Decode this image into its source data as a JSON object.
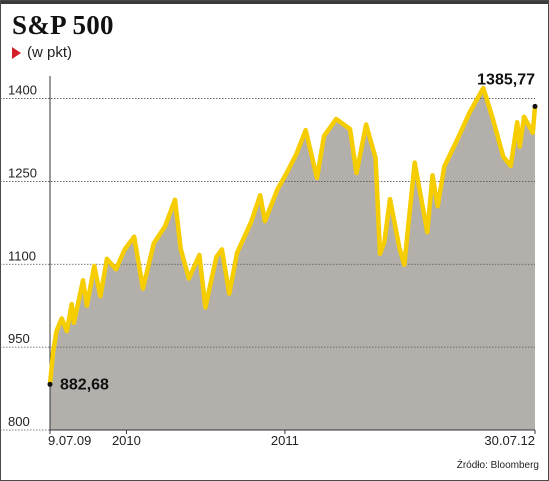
{
  "title": "S&P 500",
  "subtitle": "(w pkt)",
  "source": "Źródło: Bloomberg",
  "colors": {
    "line": "#f5cd00",
    "area": "#b3b0ac",
    "grid": "#555555",
    "subtitle_marker": "#d4202a"
  },
  "chart_data": {
    "type": "area",
    "title": "S&P 500",
    "subtitle": "(w pkt)",
    "xlabel": "",
    "ylabel": "",
    "ylim": [
      800,
      1430
    ],
    "yticks": [
      800,
      950,
      1100,
      1250,
      1400
    ],
    "xtick_labels": [
      {
        "label": "9.07.09",
        "date": "2009-07-09"
      },
      {
        "label": "2010",
        "date": "2010-01-01"
      },
      {
        "label": "2011",
        "date": "2011-01-01"
      },
      {
        "label": "30.07.12",
        "date": "2012-07-30"
      }
    ],
    "grid": true,
    "annotations": [
      {
        "text": "882,68",
        "date": "2009-07-09",
        "value": 882.68
      },
      {
        "text": "1385,77",
        "date": "2012-07-30",
        "value": 1385.77
      }
    ],
    "series": [
      {
        "values": [
          [
            "2009-07-09",
            882.68
          ],
          [
            "2009-07-16",
            940
          ],
          [
            "2009-07-24",
            979
          ],
          [
            "2009-08-05",
            1002
          ],
          [
            "2009-08-17",
            979
          ],
          [
            "2009-08-28",
            1028
          ],
          [
            "2009-09-02",
            994
          ],
          [
            "2009-09-23",
            1071
          ],
          [
            "2009-10-02",
            1025
          ],
          [
            "2009-10-19",
            1097
          ],
          [
            "2009-11-02",
            1042
          ],
          [
            "2009-11-17",
            1110
          ],
          [
            "2009-12-08",
            1091
          ],
          [
            "2009-12-28",
            1127
          ],
          [
            "2010-01-19",
            1150
          ],
          [
            "2010-02-08",
            1056
          ],
          [
            "2010-03-05",
            1138
          ],
          [
            "2010-03-31",
            1169
          ],
          [
            "2010-04-23",
            1217
          ],
          [
            "2010-05-06",
            1128
          ],
          [
            "2010-05-25",
            1074
          ],
          [
            "2010-06-18",
            1117
          ],
          [
            "2010-07-02",
            1022
          ],
          [
            "2010-07-27",
            1113
          ],
          [
            "2010-08-09",
            1127
          ],
          [
            "2010-08-26",
            1047
          ],
          [
            "2010-09-13",
            1121
          ],
          [
            "2010-10-15",
            1176
          ],
          [
            "2010-11-05",
            1225
          ],
          [
            "2010-11-16",
            1178
          ],
          [
            "2010-12-15",
            1236
          ],
          [
            "2010-12-31",
            1258
          ],
          [
            "2011-01-27",
            1299
          ],
          [
            "2011-02-18",
            1343
          ],
          [
            "2011-03-16",
            1256
          ],
          [
            "2011-04-01",
            1332
          ],
          [
            "2011-04-29",
            1363
          ],
          [
            "2011-05-31",
            1345
          ],
          [
            "2011-06-15",
            1265
          ],
          [
            "2011-07-07",
            1353
          ],
          [
            "2011-07-29",
            1292
          ],
          [
            "2011-08-08",
            1119
          ],
          [
            "2011-08-18",
            1140
          ],
          [
            "2011-08-31",
            1218
          ],
          [
            "2011-09-22",
            1129
          ],
          [
            "2011-10-03",
            1099
          ],
          [
            "2011-10-27",
            1284
          ],
          [
            "2011-11-25",
            1158
          ],
          [
            "2011-12-07",
            1261
          ],
          [
            "2011-12-19",
            1205
          ],
          [
            "2012-01-03",
            1277
          ],
          [
            "2012-02-01",
            1324
          ],
          [
            "2012-03-01",
            1374
          ],
          [
            "2012-04-02",
            1419
          ],
          [
            "2012-04-23",
            1366
          ],
          [
            "2012-05-18",
            1295
          ],
          [
            "2012-06-04",
            1278
          ],
          [
            "2012-06-19",
            1357
          ],
          [
            "2012-06-25",
            1313
          ],
          [
            "2012-07-05",
            1367
          ],
          [
            "2012-07-25",
            1338
          ],
          [
            "2012-07-30",
            1385.77
          ]
        ]
      }
    ]
  }
}
